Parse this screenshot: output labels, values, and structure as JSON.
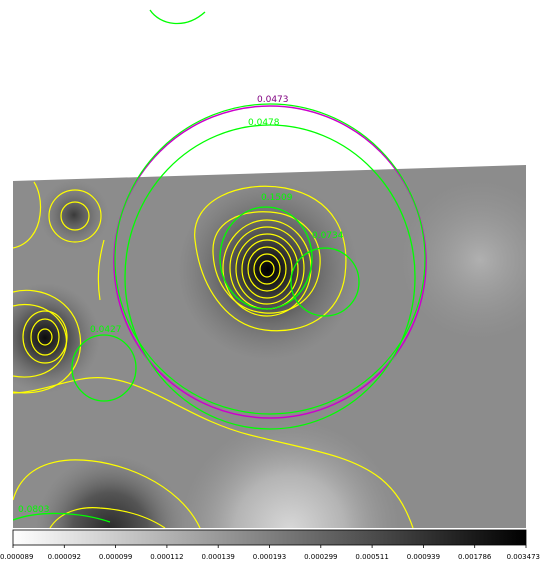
{
  "colors": {
    "background": "#ffffff",
    "contour": "#ffff00",
    "region_green": "#00ff00",
    "region_magenta": "#cc00cc",
    "label_magenta": "#800080"
  },
  "regions": {
    "magenta_label": "0.0473",
    "big_green_label": "0.0478",
    "source_upper_label": "0.1509",
    "source_right_label": "0.0734",
    "left_circle_label": "0.0427",
    "bottom_left_label": "0.0803"
  },
  "colorbar": {
    "ticks": [
      "0.000089",
      "0.000092",
      "0.000099",
      "0.000112",
      "0.000139",
      "0.000193",
      "0.000299",
      "0.000511",
      "0.000939",
      "0.001786",
      "0.003473"
    ]
  }
}
